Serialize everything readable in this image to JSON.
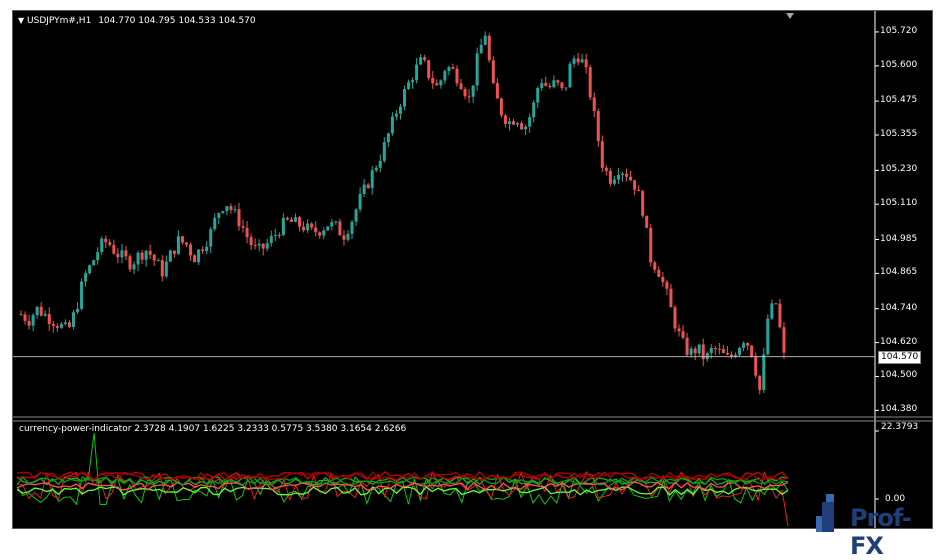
{
  "chart_header": {
    "symbol_timeframe": "USDJPYm#,H1",
    "ohlc": "104.770 104.795 104.533 104.570"
  },
  "price_axis": [
    "105.720",
    "105.600",
    "105.475",
    "105.355",
    "105.230",
    "105.110",
    "104.985",
    "104.865",
    "104.740",
    "104.620",
    "104.500",
    "104.380"
  ],
  "current_price": "104.570",
  "indicator": {
    "title": "currency-power-indicator 2.3728 4.1907 1.6225 3.2333 0.5775 3.5380 3.1654 2.6266",
    "axis_top": "22.3793",
    "axis_zero": "0.00"
  },
  "logo": {
    "text": "Prof-FX"
  },
  "colors": {
    "bull": "#26a69a",
    "bear": "#ef5350",
    "bg": "#000000",
    "green": "#00cc00",
    "red": "#e00000"
  },
  "chart_data": {
    "type": "candlestick",
    "symbol": "USDJPYm#",
    "timeframe": "H1",
    "ylim": [
      104.36,
      105.78
    ],
    "close_path": [
      104.72,
      104.7,
      104.74,
      104.72,
      104.7,
      104.68,
      104.66,
      104.74,
      104.85,
      104.9,
      104.96,
      104.98,
      104.94,
      104.92,
      104.9,
      104.93,
      104.95,
      104.91,
      104.87,
      104.93,
      104.98,
      104.97,
      104.92,
      104.96,
      105.0,
      105.08,
      105.12,
      105.08,
      105.04,
      104.98,
      104.94,
      104.96,
      104.99,
      105.03,
      105.05,
      105.04,
      105.03,
      105.01,
      105.02,
      105.04,
      105.03,
      105.0,
      105.05,
      105.12,
      105.18,
      105.24,
      105.3,
      105.38,
      105.46,
      105.52,
      105.58,
      105.62,
      105.56,
      105.52,
      105.6,
      105.58,
      105.54,
      105.48,
      105.62,
      105.72,
      105.52,
      105.44,
      105.4,
      105.42,
      105.38,
      105.44,
      105.56,
      105.52,
      105.54,
      105.5,
      105.62,
      105.64,
      105.56,
      105.4,
      105.24,
      105.2,
      105.24,
      105.22,
      105.18,
      105.1,
      104.92,
      104.88,
      104.8,
      104.7,
      104.62,
      104.58,
      104.6,
      104.56,
      104.6,
      104.58,
      104.56,
      104.6,
      104.64,
      104.58,
      104.44,
      104.72,
      104.76,
      104.57
    ],
    "indicator_lines": 8
  }
}
